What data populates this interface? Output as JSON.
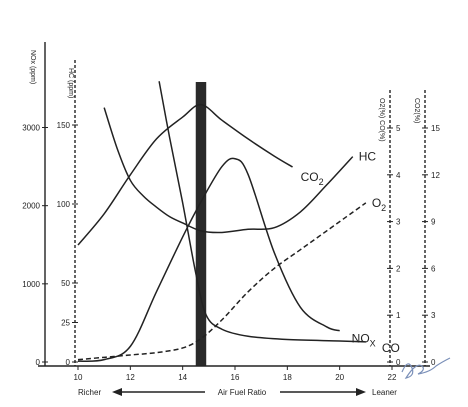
{
  "chart_data": {
    "type": "line",
    "x": {
      "label": "Air Fuel Ratio",
      "range": [
        10,
        22
      ],
      "ticks": [
        "10",
        "12",
        "14",
        "16",
        "18",
        "20",
        "22"
      ],
      "left_label": "Richer",
      "right_label": "Leaner"
    },
    "y_axes": [
      {
        "id": "nox",
        "title": "NOx (ppm)",
        "range": [
          0,
          3500
        ],
        "ticks": [
          "0",
          "1000",
          "2000",
          "3000"
        ]
      },
      {
        "id": "hc",
        "title": "HC (ppm)",
        "range": [
          0,
          175
        ],
        "ticks": [
          "0",
          "25",
          "50",
          "100",
          "150"
        ]
      },
      {
        "id": "o2co",
        "title": "O2(%) CO(%)",
        "range": [
          0,
          6
        ],
        "ticks": [
          "0",
          "1",
          "2",
          "3",
          "4",
          "5"
        ]
      },
      {
        "id": "co2",
        "title": "CO2(%)",
        "range": [
          0,
          18
        ],
        "ticks": [
          "0",
          "3",
          "6",
          "9",
          "12",
          "15"
        ]
      }
    ],
    "highlight_band": {
      "x_range": [
        14.5,
        14.9
      ],
      "color": "#2a2a2a"
    },
    "series": [
      {
        "name": "CO2",
        "axis": "co2",
        "style": "solid",
        "x": [
          10,
          11,
          12,
          13,
          14,
          14.7,
          15.5,
          16.5,
          17.5,
          18.2
        ],
        "y": [
          7.5,
          9.5,
          12,
          14.3,
          15.7,
          16.5,
          15.5,
          14.3,
          13.2,
          12.5
        ]
      },
      {
        "name": "HC",
        "axis": "hc",
        "style": "solid",
        "x": [
          11,
          11.5,
          12,
          12.5,
          13,
          13.5,
          14,
          14.7,
          15.5,
          16.5,
          17.5,
          18.5,
          19.5,
          20.5
        ],
        "y": [
          161,
          135,
          115,
          105,
          98,
          92,
          88,
          83,
          82,
          84,
          85,
          95,
          112,
          130
        ]
      },
      {
        "name": "NOx",
        "axis": "nox",
        "style": "solid",
        "x": [
          10,
          11,
          12,
          13,
          14,
          14.7,
          15.5,
          16,
          16.5,
          17.5,
          18.5,
          19.5,
          20
        ],
        "y": [
          10,
          30,
          200,
          900,
          1600,
          2050,
          2500,
          2600,
          2400,
          1400,
          700,
          450,
          400
        ]
      },
      {
        "name": "O2",
        "axis": "o2co",
        "style": "dashed",
        "x": [
          10,
          11,
          12,
          13,
          14,
          14.7,
          15.5,
          16.5,
          17.5,
          18.5,
          19.5,
          20.5,
          21
        ],
        "y": [
          0.05,
          0.1,
          0.15,
          0.2,
          0.3,
          0.5,
          0.9,
          1.5,
          2.0,
          2.4,
          2.8,
          3.2,
          3.4
        ]
      },
      {
        "name": "CO",
        "axis": "o2co",
        "style": "solid",
        "x": [
          13.1,
          13.5,
          14,
          14.5,
          14.9,
          15.5,
          16.5,
          18,
          20,
          21
        ],
        "y": [
          6,
          4.8,
          3.4,
          1.9,
          1.0,
          0.7,
          0.55,
          0.48,
          0.45,
          0.43
        ]
      }
    ],
    "curve_labels": [
      {
        "text": "CO",
        "sub": "2",
        "series": "CO2"
      },
      {
        "text": "HC",
        "sub": "",
        "series": "HC"
      },
      {
        "text": "O",
        "sub": "2",
        "series": "O2"
      },
      {
        "text": "NO",
        "sub": "X",
        "series": "NOx"
      },
      {
        "text": "CO",
        "sub": "",
        "series": "CO"
      }
    ]
  }
}
